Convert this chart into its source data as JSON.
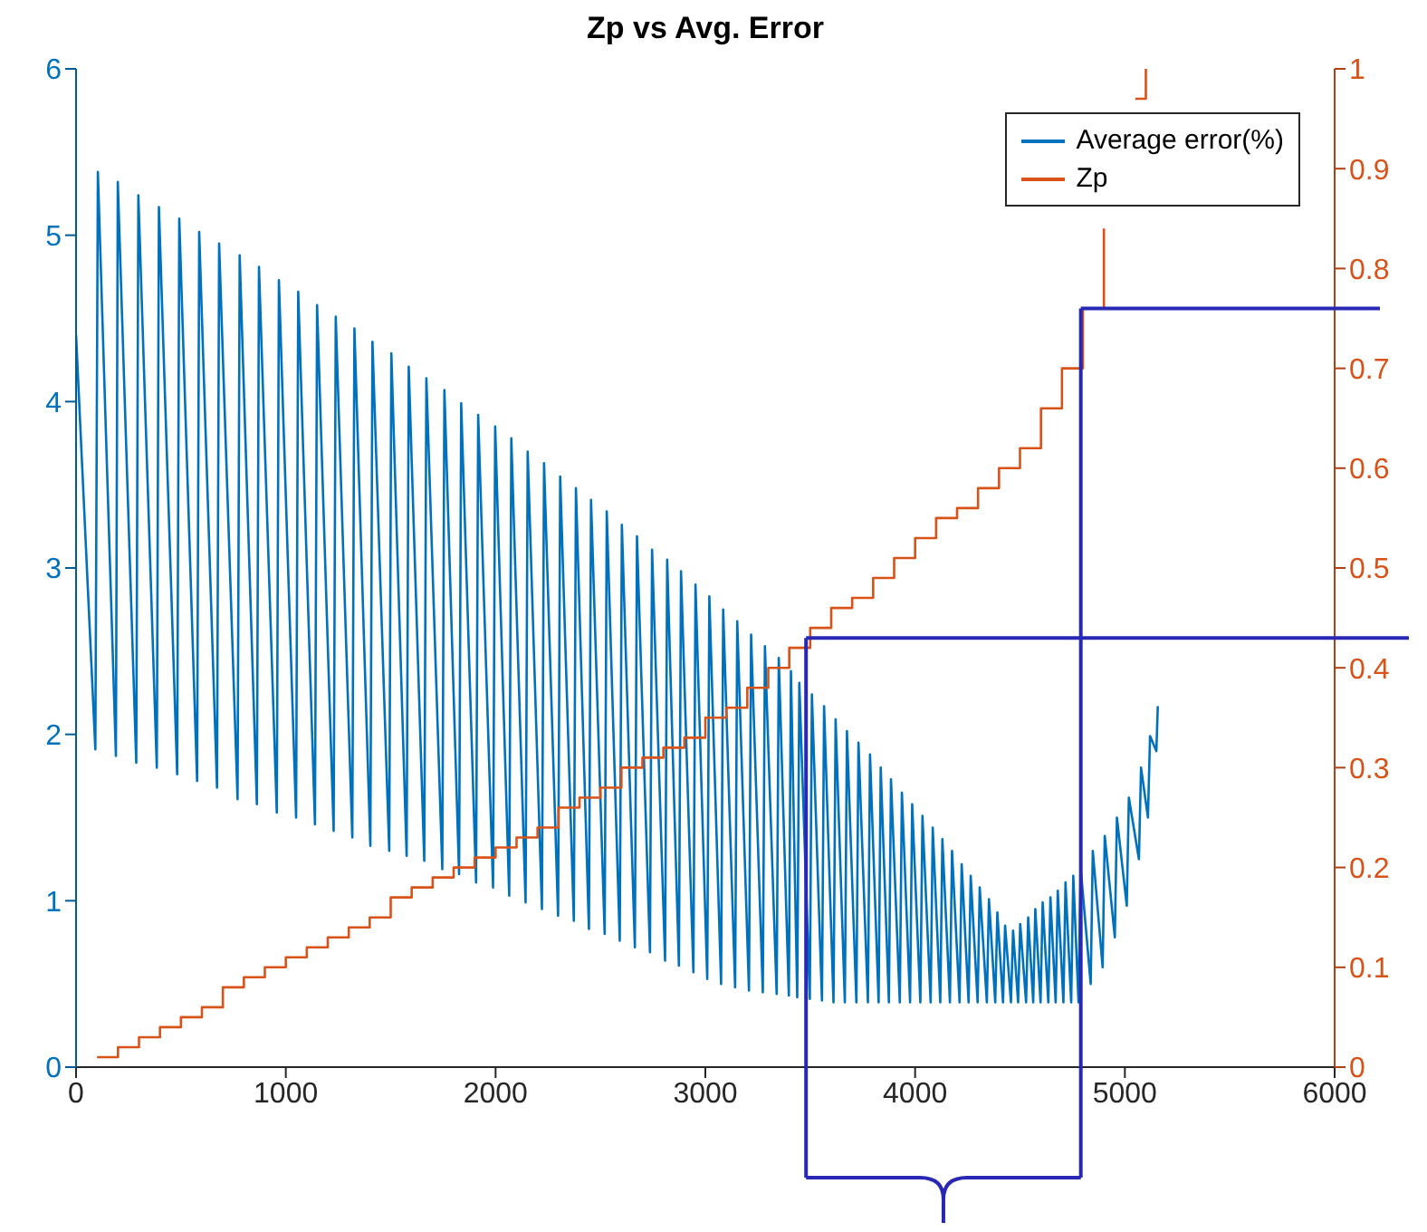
{
  "chart_data": {
    "type": "line",
    "title": "Zp vs Avg. Error",
    "xlim": [
      0,
      6000
    ],
    "xticks": [
      0,
      1000,
      2000,
      3000,
      4000,
      5000,
      6000
    ],
    "ylim": [
      0,
      6
    ],
    "yticks": [
      0,
      1,
      2,
      3,
      4,
      5,
      6
    ],
    "y2lim": [
      0,
      1
    ],
    "y2ticks": [
      0,
      0.1,
      0.2,
      0.3,
      0.4,
      0.5,
      0.6,
      0.7,
      0.8,
      0.9,
      1
    ],
    "grid": false,
    "legend": "top right",
    "marker": "none",
    "line_style": "solid",
    "ref_lines": [
      {
        "axis": "y2",
        "value": 0.43,
        "color": "#2828b4"
      },
      {
        "axis": "y2",
        "value": 0.76,
        "color": "#2828b4"
      },
      {
        "axis": "x",
        "value": 3480,
        "color": "#2828b4"
      },
      {
        "axis": "x",
        "value": 4790,
        "color": "#2828b4"
      }
    ],
    "series": [
      {
        "name": "Average error(%)",
        "color": "#0072bd",
        "type": "line",
        "x": [
          0,
          92,
          104,
          190,
          199,
          287,
          297,
          385,
          395,
          482,
          492,
          577,
          587,
          672,
          682,
          770,
          780,
          862,
          872,
          957,
          967,
          1049,
          1059,
          1139,
          1149,
          1228,
          1238,
          1317,
          1327,
          1403,
          1413,
          1493,
          1503,
          1576,
          1586,
          1660,
          1670,
          1746,
          1756,
          1826,
          1836,
          1907,
          1917,
          1988,
          1998,
          2065,
          2075,
          2143,
          2153,
          2221,
          2231,
          2298,
          2308,
          2373,
          2383,
          2445,
          2455,
          2520,
          2530,
          2592,
          2602,
          2664,
          2674,
          2736,
          2746,
          2808,
          2818,
          2874,
          2884,
          2943,
          2953,
          3009,
          3019,
          3075,
          3085,
          3142,
          3152,
          3208,
          3218,
          3274,
          3284,
          3340,
          3350,
          3398,
          3408,
          3438,
          3448,
          3498,
          3508,
          3556,
          3566,
          3611,
          3621,
          3665,
          3675,
          3720,
          3730,
          3775,
          3785,
          3826,
          3836,
          3875,
          3885,
          3927,
          3937,
          3976,
          3986,
          4025,
          4035,
          4074,
          4084,
          4120,
          4130,
          4166,
          4176,
          4212,
          4222,
          4255,
          4265,
          4298,
          4308,
          4342,
          4352,
          4382,
          4392,
          4419,
          4429,
          4457,
          4467,
          4491,
          4501,
          4529,
          4539,
          4563,
          4573,
          4598,
          4608,
          4635,
          4645,
          4670,
          4680,
          4707,
          4717,
          4744,
          4754,
          4779,
          4789,
          4837,
          4847,
          4894,
          4904,
          4952,
          4962,
          5009,
          5019,
          5067,
          5077,
          5110,
          5120,
          5150,
          5157
        ],
        "values": [
          4.4,
          1.91,
          5.38,
          1.87,
          5.32,
          1.83,
          5.24,
          1.8,
          5.17,
          1.76,
          5.1,
          1.72,
          5.02,
          1.68,
          4.95,
          1.61,
          4.88,
          1.58,
          4.81,
          1.53,
          4.73,
          1.5,
          4.66,
          1.46,
          4.58,
          1.42,
          4.51,
          1.38,
          4.44,
          1.33,
          4.36,
          1.3,
          4.29,
          1.27,
          4.21,
          1.24,
          4.14,
          1.19,
          4.07,
          1.16,
          3.99,
          1.11,
          3.92,
          1.08,
          3.85,
          1.03,
          3.78,
          0.99,
          3.7,
          0.95,
          3.63,
          0.91,
          3.55,
          0.88,
          3.48,
          0.83,
          3.41,
          0.8,
          3.34,
          0.76,
          3.26,
          0.72,
          3.19,
          0.69,
          3.11,
          0.64,
          3.05,
          0.61,
          2.98,
          0.57,
          2.9,
          0.53,
          2.83,
          0.5,
          2.75,
          0.48,
          2.68,
          0.46,
          2.6,
          0.45,
          2.53,
          0.44,
          2.46,
          0.43,
          2.38,
          0.42,
          2.31,
          0.41,
          2.24,
          0.4,
          2.17,
          0.39,
          2.09,
          0.39,
          2.02,
          0.39,
          1.95,
          0.39,
          1.88,
          0.39,
          1.8,
          0.39,
          1.73,
          0.39,
          1.65,
          0.39,
          1.58,
          0.39,
          1.51,
          0.39,
          1.44,
          0.39,
          1.37,
          0.39,
          1.3,
          0.39,
          1.22,
          0.39,
          1.15,
          0.39,
          1.08,
          0.39,
          1.01,
          0.39,
          0.93,
          0.39,
          0.85,
          0.39,
          0.82,
          0.39,
          0.86,
          0.39,
          0.9,
          0.39,
          0.95,
          0.39,
          0.99,
          0.39,
          1.02,
          0.39,
          1.06,
          0.39,
          1.11,
          0.39,
          1.15,
          0.39,
          1.2,
          0.5,
          1.3,
          0.6,
          1.39,
          0.78,
          1.5,
          0.97,
          1.62,
          1.25,
          1.8,
          1.5,
          1.99,
          1.9,
          2.17
        ]
      },
      {
        "name": "Zp",
        "color": "#d95319",
        "type": "step",
        "axis": "y2",
        "x": [
          100,
          200,
          300,
          400,
          500,
          600,
          700,
          800,
          900,
          1000,
          1100,
          1200,
          1300,
          1400,
          1500,
          1600,
          1700,
          1800,
          1900,
          2000,
          2100,
          2200,
          2300,
          2400,
          2500,
          2600,
          2700,
          2800,
          2900,
          3000,
          3100,
          3200,
          3300,
          3400,
          3500,
          3600,
          3700,
          3800,
          3900,
          4000,
          4100,
          4200,
          4300,
          4400,
          4500,
          4600,
          4700,
          4800,
          4900,
          5000,
          5050,
          5100
        ],
        "values": [
          0.01,
          0.02,
          0.03,
          0.04,
          0.05,
          0.06,
          0.08,
          0.09,
          0.1,
          0.11,
          0.12,
          0.13,
          0.14,
          0.15,
          0.17,
          0.18,
          0.19,
          0.2,
          0.21,
          0.22,
          0.23,
          0.24,
          0.26,
          0.27,
          0.28,
          0.3,
          0.31,
          0.32,
          0.33,
          0.35,
          0.36,
          0.38,
          0.4,
          0.42,
          0.44,
          0.46,
          0.47,
          0.49,
          0.51,
          0.53,
          0.55,
          0.56,
          0.58,
          0.6,
          0.62,
          0.66,
          0.7,
          0.76,
          0.84,
          null,
          0.97,
          1.0
        ]
      }
    ]
  }
}
